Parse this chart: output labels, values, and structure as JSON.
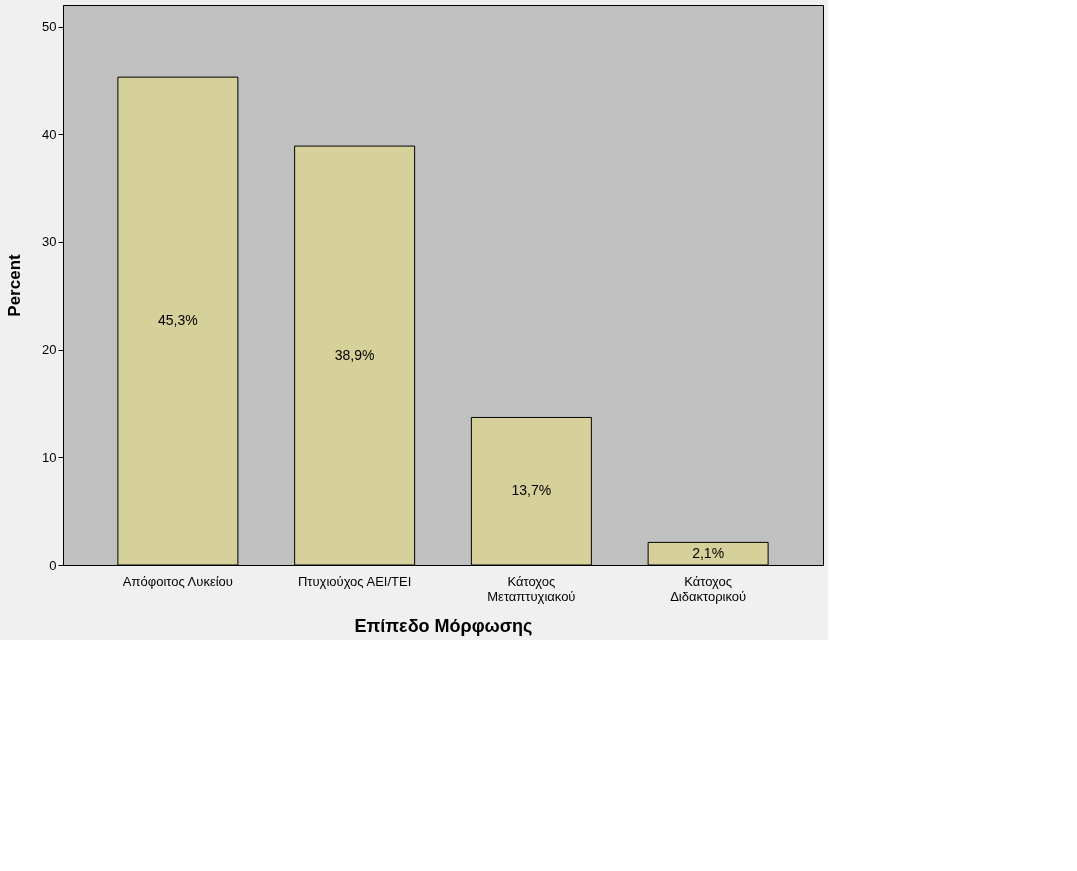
{
  "chart_data": {
    "type": "bar",
    "xlabel": "Επίπεδο Μόρφωσης",
    "ylabel": "Percent",
    "categories": [
      "Απόφοιτος Λυκείου",
      "Πτυχιούχος ΑΕΙ/ΤΕΙ",
      "Κάτοχος\nΜεταπτυχιακού",
      "Κάτοχος\nΔιδακτορικού"
    ],
    "values": [
      45.3,
      38.9,
      13.7,
      2.1
    ],
    "value_labels": [
      "45,3%",
      "38,9%",
      "13,7%",
      "2,1%"
    ],
    "color": "#d6d09a",
    "ylim": [
      0,
      52
    ],
    "yticks": [
      0,
      10,
      20,
      30,
      40,
      50
    ],
    "grid": false
  }
}
